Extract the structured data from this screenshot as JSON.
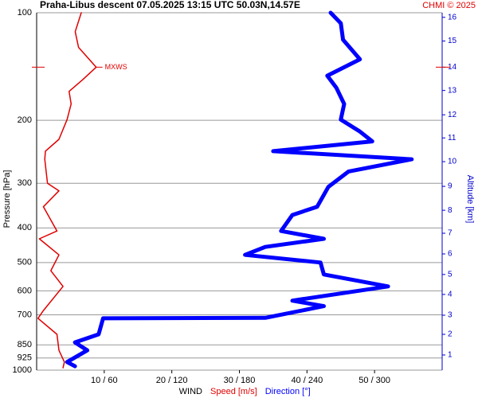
{
  "chart_data": {
    "type": "line",
    "title": "Praha-Libus   descent   07.05.2025 13:15 UTC   50.03N,14.57E",
    "credit": "CHMI © 2025",
    "ylabel": "Pressure [hPa]",
    "y2label": "Altitude [km]",
    "xlabel": "WIND",
    "log_y": true,
    "ylim": [
      100,
      1000
    ],
    "yticks": [
      100,
      200,
      300,
      400,
      500,
      600,
      700,
      850,
      925,
      1000
    ],
    "xlim": [
      0,
      60
    ],
    "x2lim": [
      0,
      360
    ],
    "xticks": [
      {
        "value": 10,
        "label": "10 / 60"
      },
      {
        "value": 20,
        "label": "20 / 120"
      },
      {
        "value": 30,
        "label": "30 / 180"
      },
      {
        "value": 40,
        "label": "40 / 240"
      },
      {
        "value": 50,
        "label": "50 / 300"
      }
    ],
    "y2ticks": [
      1,
      2,
      3,
      4,
      5,
      6,
      7,
      8,
      9,
      10,
      11,
      12,
      13,
      14,
      15,
      16
    ],
    "y2tick_pressures": [
      907,
      794,
      702,
      614,
      540,
      473,
      414,
      357,
      306,
      261,
      224,
      193,
      165,
      142,
      120,
      103
    ],
    "grid": true,
    "annotation": {
      "text": "MXWS",
      "pressure": 142,
      "value": 8.8
    },
    "series": [
      {
        "name": "Speed [m/s]",
        "color": "#e00000",
        "axis": "x",
        "pressure": [
          100,
          113,
          125,
          142,
          154,
          166,
          180,
          199,
          226,
          244,
          257,
          300,
          315,
          349,
          408,
          429,
          476,
          527,
          583,
          681,
          716,
          794,
          880,
          949,
          985
        ],
        "values": [
          6.6,
          5.7,
          6.2,
          8.8,
          6.8,
          4.8,
          5.1,
          4.5,
          3.3,
          1.3,
          1.2,
          1.6,
          3.3,
          1.0,
          3.0,
          0.4,
          3.3,
          2.1,
          3.9,
          1.0,
          0.2,
          3.0,
          3.3,
          4.1,
          3.9
        ]
      },
      {
        "name": "Direction [°]",
        "color": "#0000ff",
        "axis": "x2",
        "pressure": [
          100,
          107,
          119,
          135,
          150,
          162,
          180,
          199,
          215,
          229,
          244,
          257,
          278,
          307,
          349,
          368,
          408,
          429,
          452,
          476,
          500,
          540,
          583,
          639,
          662,
          714,
          716,
          794,
          836,
          880,
          949,
          975
        ],
        "values": [
          261,
          270,
          272,
          287,
          258,
          266,
          273,
          270,
          287,
          298,
          210,
          333,
          277,
          259,
          249,
          227,
          217,
          255,
          203,
          185,
          252,
          255,
          312,
          227,
          255,
          203,
          59,
          55,
          34,
          45,
          27,
          34
        ]
      }
    ]
  }
}
